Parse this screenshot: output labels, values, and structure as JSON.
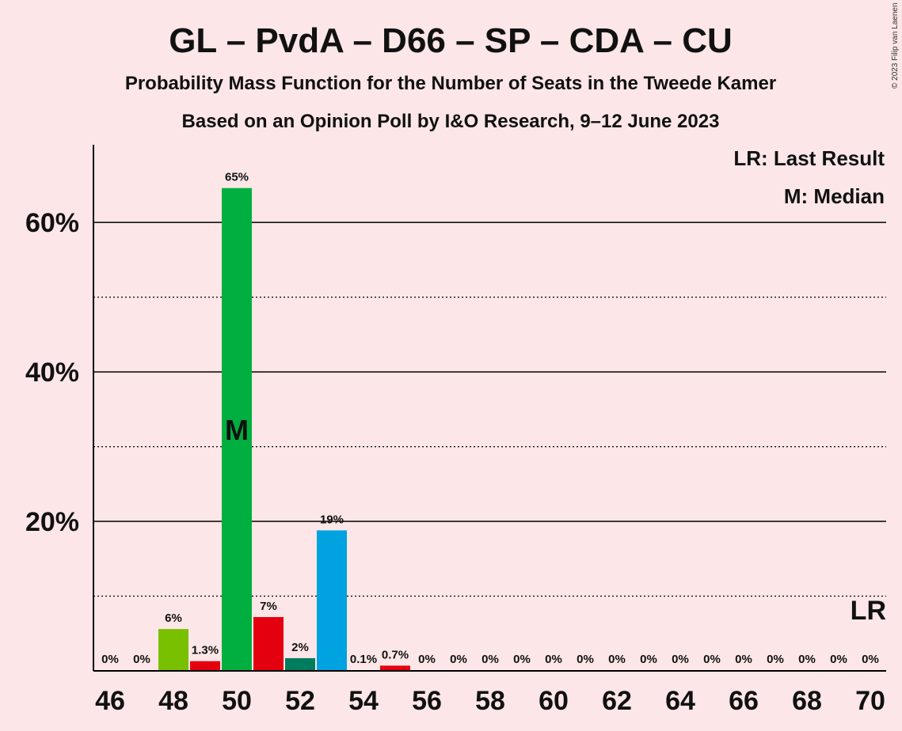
{
  "colors": {
    "background": "#fce6e7",
    "GL": "#79c000",
    "PvdA": "#e4000f",
    "D66": "#00af3f",
    "CDA": "#007c5f",
    "CU": "#00a2e0"
  },
  "chart_data": {
    "type": "bar",
    "title": "GL – PvdA – D66 – SP – CDA – CU",
    "subtitle": "Probability Mass Function for the Number of Seats in the Tweede Kamer",
    "subtitle2": "Based on an Opinion Poll by I&O Research, 9–12 June 2023",
    "copyright": "© 2023 Filip van Laenen",
    "legend": {
      "lr": "LR: Last Result",
      "median": "M: Median",
      "placement": "top-right"
    },
    "median_seat": 50,
    "median_label": "M",
    "last_result_seat": 70,
    "last_result_label": "LR",
    "xlim": [
      46,
      70
    ],
    "ylim": [
      0,
      70
    ],
    "y_ticks": [
      {
        "value": 20,
        "label": "20%"
      },
      {
        "value": 40,
        "label": "40%"
      },
      {
        "value": 60,
        "label": "60%"
      }
    ],
    "y_minor_gridlines": [
      10,
      30,
      50
    ],
    "x_tick_labels": [
      "46",
      "48",
      "50",
      "52",
      "54",
      "56",
      "58",
      "60",
      "62",
      "64",
      "66",
      "68",
      "70"
    ],
    "bars": [
      {
        "seats": 46,
        "value": 0,
        "label": "0%",
        "color": "none"
      },
      {
        "seats": 47,
        "value": 0,
        "label": "0%",
        "color": "none"
      },
      {
        "seats": 48,
        "value": 5.6,
        "label": "6%",
        "color": "#79c000"
      },
      {
        "seats": 49,
        "value": 1.3,
        "label": "1.3%",
        "color": "#e4000f"
      },
      {
        "seats": 50,
        "value": 64.6,
        "label": "65%",
        "color": "#00af3f"
      },
      {
        "seats": 51,
        "value": 7.2,
        "label": "7%",
        "color": "#e4000f"
      },
      {
        "seats": 52,
        "value": 1.7,
        "label": "2%",
        "color": "#007c5f"
      },
      {
        "seats": 53,
        "value": 18.8,
        "label": "19%",
        "color": "#00a2e0"
      },
      {
        "seats": 54,
        "value": 0.1,
        "label": "0.1%",
        "color": "#00a2e0"
      },
      {
        "seats": 55,
        "value": 0.7,
        "label": "0.7%",
        "color": "#e4000f"
      },
      {
        "seats": 56,
        "value": 0,
        "label": "0%",
        "color": "none"
      },
      {
        "seats": 57,
        "value": 0,
        "label": "0%",
        "color": "none"
      },
      {
        "seats": 58,
        "value": 0,
        "label": "0%",
        "color": "none"
      },
      {
        "seats": 59,
        "value": 0,
        "label": "0%",
        "color": "none"
      },
      {
        "seats": 60,
        "value": 0,
        "label": "0%",
        "color": "none"
      },
      {
        "seats": 61,
        "value": 0,
        "label": "0%",
        "color": "none"
      },
      {
        "seats": 62,
        "value": 0,
        "label": "0%",
        "color": "none"
      },
      {
        "seats": 63,
        "value": 0,
        "label": "0%",
        "color": "none"
      },
      {
        "seats": 64,
        "value": 0,
        "label": "0%",
        "color": "none"
      },
      {
        "seats": 65,
        "value": 0,
        "label": "0%",
        "color": "none"
      },
      {
        "seats": 66,
        "value": 0,
        "label": "0%",
        "color": "none"
      },
      {
        "seats": 67,
        "value": 0,
        "label": "0%",
        "color": "none"
      },
      {
        "seats": 68,
        "value": 0,
        "label": "0%",
        "color": "none"
      },
      {
        "seats": 69,
        "value": 0,
        "label": "0%",
        "color": "none"
      },
      {
        "seats": 70,
        "value": 0,
        "label": "0%",
        "color": "none"
      }
    ]
  }
}
